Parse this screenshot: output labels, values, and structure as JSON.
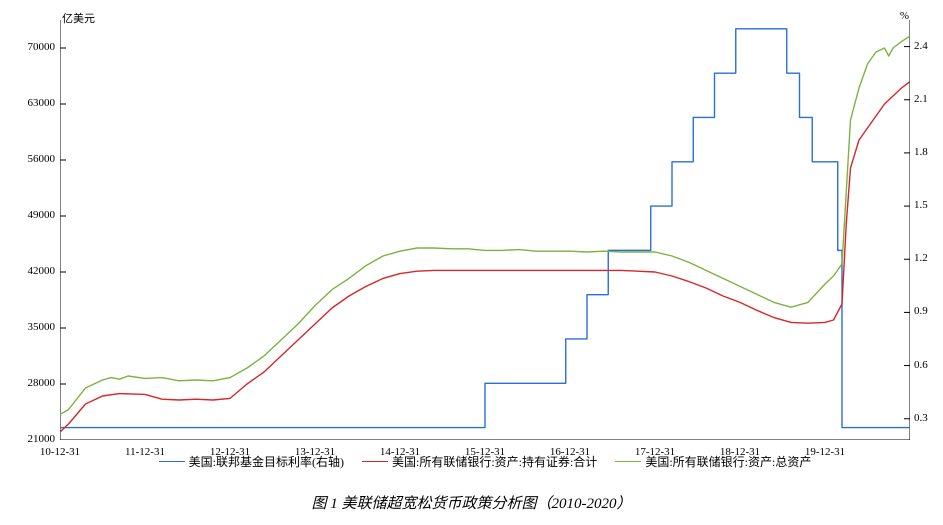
{
  "caption": "图 1   美联储超宽松货币政策分析图（2010-2020）",
  "chart": {
    "type": "line",
    "background_color": "#ffffff",
    "axis_color": "#000000",
    "left_axis": {
      "unit": "亿美元",
      "min": 21000,
      "max": 73500,
      "ticks": [
        21000,
        28000,
        35000,
        42000,
        49000,
        56000,
        63000,
        70000
      ]
    },
    "right_axis": {
      "unit": "%",
      "min": 0.18,
      "max": 2.55,
      "ticks": [
        0.3,
        0.6,
        0.9,
        1.2,
        1.5,
        1.8,
        2.1,
        2.4
      ]
    },
    "x_axis": {
      "labels": [
        "10-12-31",
        "11-12-31",
        "12-12-31",
        "13-12-31",
        "14-12-31",
        "15-12-31",
        "16-12-31",
        "17-12-31",
        "18-12-31",
        "19-12-31"
      ],
      "positions": [
        0,
        1,
        2,
        3,
        4,
        5,
        6,
        7,
        8,
        9
      ],
      "domain_max": 10
    },
    "series": [
      {
        "name": "美国:联邦基金目标利率(右轴)",
        "axis": "right",
        "color": "#2a6fd6",
        "line_width": 1.4,
        "data": [
          [
            0.0,
            0.25
          ],
          [
            0.3,
            0.25
          ],
          [
            5.0,
            0.25
          ],
          [
            5.0,
            0.5
          ],
          [
            5.95,
            0.5
          ],
          [
            5.95,
            0.75
          ],
          [
            6.2,
            0.75
          ],
          [
            6.2,
            1.0
          ],
          [
            6.45,
            1.0
          ],
          [
            6.45,
            1.25
          ],
          [
            6.95,
            1.25
          ],
          [
            6.95,
            1.5
          ],
          [
            7.2,
            1.5
          ],
          [
            7.2,
            1.75
          ],
          [
            7.45,
            1.75
          ],
          [
            7.45,
            2.0
          ],
          [
            7.7,
            2.0
          ],
          [
            7.7,
            2.25
          ],
          [
            7.95,
            2.25
          ],
          [
            7.95,
            2.5
          ],
          [
            8.55,
            2.5
          ],
          [
            8.55,
            2.25
          ],
          [
            8.7,
            2.25
          ],
          [
            8.7,
            2.0
          ],
          [
            8.85,
            2.0
          ],
          [
            8.85,
            1.75
          ],
          [
            9.15,
            1.75
          ],
          [
            9.15,
            1.25
          ],
          [
            9.2,
            1.25
          ],
          [
            9.2,
            0.25
          ],
          [
            10.0,
            0.25
          ]
        ]
      },
      {
        "name": "美国:所有联储银行:资产:持有证券:合计",
        "axis": "left",
        "color": "#d62728",
        "line_width": 1.4,
        "data": [
          [
            0.0,
            22000
          ],
          [
            0.1,
            23000
          ],
          [
            0.3,
            25500
          ],
          [
            0.5,
            26500
          ],
          [
            0.7,
            26800
          ],
          [
            1.0,
            26700
          ],
          [
            1.2,
            26100
          ],
          [
            1.4,
            26000
          ],
          [
            1.6,
            26100
          ],
          [
            1.8,
            26000
          ],
          [
            2.0,
            26200
          ],
          [
            2.2,
            28000
          ],
          [
            2.4,
            29500
          ],
          [
            2.6,
            31500
          ],
          [
            2.8,
            33500
          ],
          [
            3.0,
            35500
          ],
          [
            3.2,
            37500
          ],
          [
            3.4,
            39000
          ],
          [
            3.6,
            40200
          ],
          [
            3.8,
            41200
          ],
          [
            4.0,
            41800
          ],
          [
            4.2,
            42100
          ],
          [
            4.4,
            42200
          ],
          [
            4.6,
            42200
          ],
          [
            4.8,
            42200
          ],
          [
            5.0,
            42200
          ],
          [
            5.2,
            42200
          ],
          [
            5.4,
            42200
          ],
          [
            5.6,
            42200
          ],
          [
            5.8,
            42200
          ],
          [
            6.0,
            42200
          ],
          [
            6.2,
            42200
          ],
          [
            6.4,
            42200
          ],
          [
            6.6,
            42200
          ],
          [
            6.8,
            42100
          ],
          [
            7.0,
            42000
          ],
          [
            7.2,
            41500
          ],
          [
            7.4,
            40800
          ],
          [
            7.6,
            40000
          ],
          [
            7.8,
            39000
          ],
          [
            8.0,
            38200
          ],
          [
            8.2,
            37200
          ],
          [
            8.4,
            36300
          ],
          [
            8.6,
            35700
          ],
          [
            8.8,
            35600
          ],
          [
            9.0,
            35700
          ],
          [
            9.1,
            36000
          ],
          [
            9.2,
            38000
          ],
          [
            9.25,
            48000
          ],
          [
            9.3,
            55000
          ],
          [
            9.4,
            58500
          ],
          [
            9.5,
            60000
          ],
          [
            9.6,
            61500
          ],
          [
            9.7,
            63000
          ],
          [
            9.8,
            64000
          ],
          [
            9.9,
            65000
          ],
          [
            10.0,
            65800
          ]
        ]
      },
      {
        "name": "美国:所有联储银行:资产:总资产",
        "axis": "left",
        "color": "#7cb342",
        "line_width": 1.4,
        "data": [
          [
            0.0,
            24200
          ],
          [
            0.1,
            24800
          ],
          [
            0.3,
            27500
          ],
          [
            0.5,
            28500
          ],
          [
            0.6,
            28800
          ],
          [
            0.7,
            28600
          ],
          [
            0.8,
            29000
          ],
          [
            1.0,
            28700
          ],
          [
            1.2,
            28800
          ],
          [
            1.4,
            28400
          ],
          [
            1.6,
            28500
          ],
          [
            1.8,
            28400
          ],
          [
            2.0,
            28800
          ],
          [
            2.2,
            30000
          ],
          [
            2.4,
            31500
          ],
          [
            2.6,
            33500
          ],
          [
            2.8,
            35500
          ],
          [
            3.0,
            37800
          ],
          [
            3.2,
            39800
          ],
          [
            3.4,
            41200
          ],
          [
            3.6,
            42800
          ],
          [
            3.8,
            44000
          ],
          [
            4.0,
            44600
          ],
          [
            4.2,
            45000
          ],
          [
            4.4,
            45000
          ],
          [
            4.6,
            44900
          ],
          [
            4.8,
            44900
          ],
          [
            5.0,
            44700
          ],
          [
            5.2,
            44700
          ],
          [
            5.4,
            44800
          ],
          [
            5.6,
            44600
          ],
          [
            5.8,
            44600
          ],
          [
            6.0,
            44600
          ],
          [
            6.2,
            44500
          ],
          [
            6.4,
            44600
          ],
          [
            6.6,
            44500
          ],
          [
            6.8,
            44500
          ],
          [
            7.0,
            44500
          ],
          [
            7.2,
            44000
          ],
          [
            7.4,
            43200
          ],
          [
            7.6,
            42200
          ],
          [
            7.8,
            41200
          ],
          [
            8.0,
            40200
          ],
          [
            8.2,
            39200
          ],
          [
            8.4,
            38200
          ],
          [
            8.6,
            37600
          ],
          [
            8.8,
            38200
          ],
          [
            9.0,
            40500
          ],
          [
            9.1,
            41500
          ],
          [
            9.2,
            43000
          ],
          [
            9.25,
            52000
          ],
          [
            9.3,
            61000
          ],
          [
            9.4,
            65000
          ],
          [
            9.5,
            68000
          ],
          [
            9.6,
            69500
          ],
          [
            9.7,
            70000
          ],
          [
            9.75,
            69000
          ],
          [
            9.8,
            70000
          ],
          [
            9.9,
            70800
          ],
          [
            10.0,
            71500
          ]
        ]
      }
    ]
  }
}
